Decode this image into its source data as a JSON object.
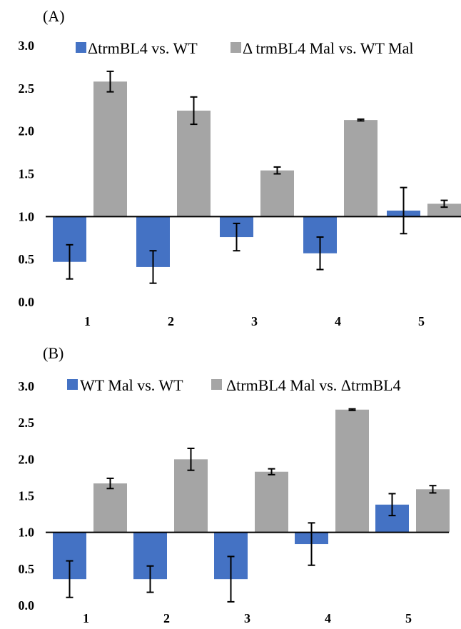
{
  "chart_data": [
    {
      "type": "bar",
      "panel_label": "(A)",
      "categories": [
        "1",
        "2",
        "3",
        "4",
        "5"
      ],
      "baseline": 1.0,
      "ylim": [
        0,
        3
      ],
      "yticks": [
        "0.0",
        "0.5",
        "1.0",
        "1.5",
        "2.0",
        "2.5",
        "3.0"
      ],
      "legend_position": "top",
      "series": [
        {
          "name": "ΔtrmBL4 vs. WT",
          "color": "#4472C4",
          "values": [
            0.47,
            0.41,
            0.76,
            0.57,
            1.07
          ],
          "errors": [
            0.2,
            0.19,
            0.16,
            0.19,
            0.27
          ]
        },
        {
          "name": "Δ trmBL4 Mal vs. WT Mal",
          "color": "#A5A5A5",
          "values": [
            2.58,
            2.24,
            1.54,
            2.13,
            1.15
          ],
          "errors": [
            0.12,
            0.16,
            0.04,
            0.01,
            0.04
          ]
        }
      ]
    },
    {
      "type": "bar",
      "panel_label": "(B)",
      "categories": [
        "1",
        "2",
        "3",
        "4",
        "5"
      ],
      "baseline": 1.0,
      "ylim": [
        0,
        3
      ],
      "yticks": [
        "0.0",
        "0.5",
        "1.0",
        "1.5",
        "2.0",
        "2.5",
        "3.0"
      ],
      "legend_position": "top",
      "series": [
        {
          "name": "WT Mal vs. WT",
          "color": "#4472C4",
          "values": [
            0.36,
            0.36,
            0.36,
            0.84,
            1.38
          ],
          "errors": [
            0.25,
            0.18,
            0.31,
            0.29,
            0.15
          ]
        },
        {
          "name": "ΔtrmBL4 Mal vs. ΔtrmBL4",
          "color": "#A5A5A5",
          "values": [
            1.67,
            2.0,
            1.83,
            2.68,
            1.59
          ],
          "errors": [
            0.07,
            0.15,
            0.04,
            0.01,
            0.05
          ]
        }
      ]
    }
  ]
}
